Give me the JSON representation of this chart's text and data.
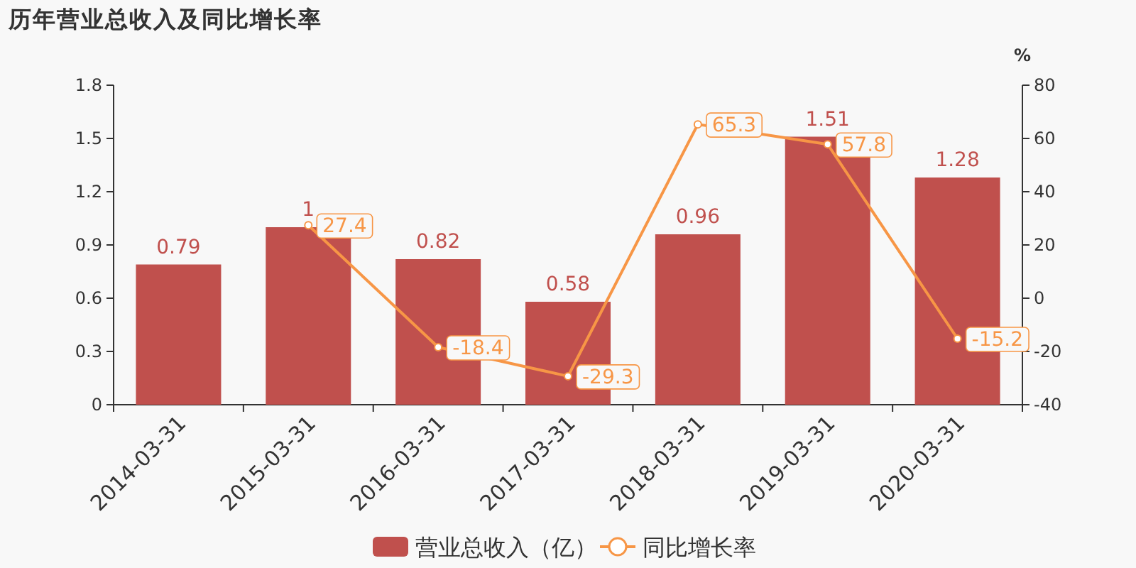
{
  "chart_data": {
    "type": "bar",
    "title": "历年营业总收入及同比增长率",
    "categories": [
      "2014-03-31",
      "2015-03-31",
      "2016-03-31",
      "2017-03-31",
      "2018-03-31",
      "2019-03-31",
      "2020-03-31"
    ],
    "series": [
      {
        "name": "营业总收入（亿）",
        "color": "#c0504d",
        "values": [
          0.79,
          1,
          0.82,
          0.58,
          0.96,
          1.51,
          1.28
        ]
      },
      {
        "name": "同比增长率",
        "type": "line",
        "axis": "y2",
        "color": "#f79646",
        "marker": "circle",
        "values": [
          null,
          27.4,
          -18.4,
          -29.3,
          65.3,
          57.8,
          -15.2
        ]
      }
    ],
    "ylim": [
      0,
      1.8
    ],
    "yticks": [
      0,
      0.3,
      0.6,
      0.9,
      1.2,
      1.5,
      1.8
    ],
    "y2lim": [
      -40,
      80
    ],
    "y2ticks": [
      -40,
      -20,
      0,
      20,
      40,
      60,
      80
    ],
    "y2label": "%",
    "data_labels": true,
    "legend": "bottom",
    "grid": false
  }
}
